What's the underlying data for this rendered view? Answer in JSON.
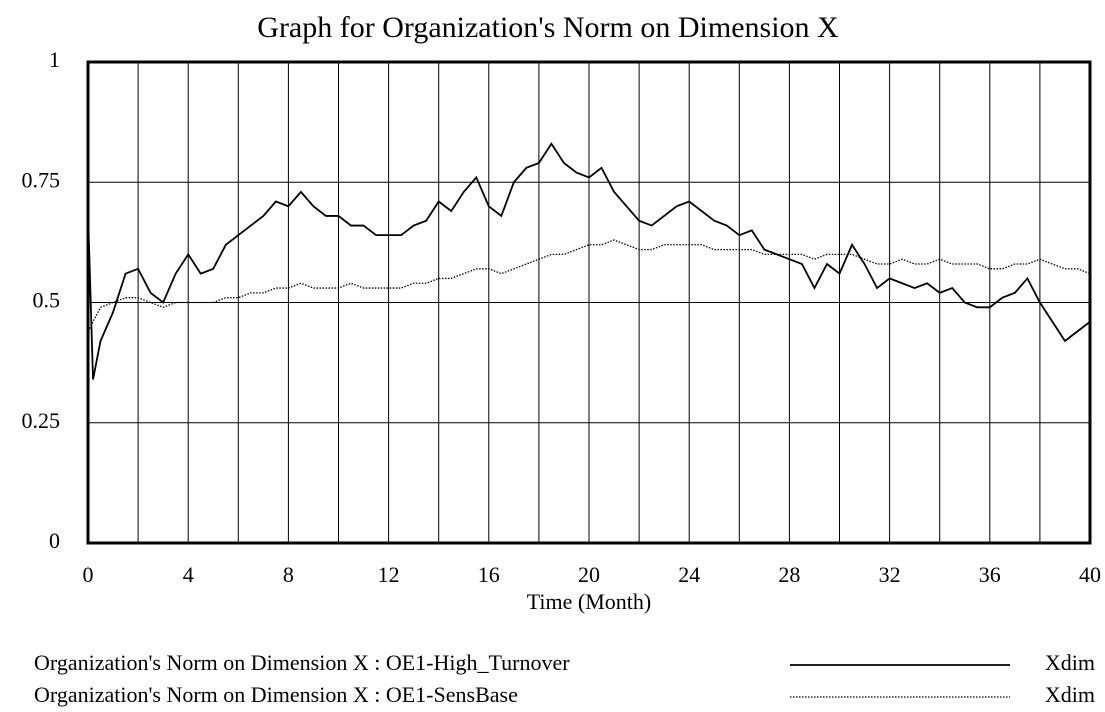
{
  "chart_data": {
    "type": "line",
    "title": "Graph for Organization's Norm on Dimension X",
    "x_label": "Time (Month)",
    "x": [
      0,
      0.2,
      0.5,
      1,
      1.5,
      2,
      2.5,
      3,
      3.5,
      4,
      4.5,
      5,
      5.5,
      6,
      6.5,
      7,
      7.5,
      8,
      8.5,
      9,
      9.5,
      10,
      10.5,
      11,
      11.5,
      12,
      12.5,
      13,
      13.5,
      14,
      14.5,
      15,
      15.5,
      16,
      16.5,
      17,
      17.5,
      18,
      18.5,
      19,
      19.5,
      20,
      20.5,
      21,
      21.5,
      22,
      22.5,
      23,
      23.5,
      24,
      24.5,
      25,
      25.5,
      26,
      26.5,
      27,
      27.5,
      28,
      28.5,
      29,
      29.5,
      30,
      30.5,
      31,
      31.5,
      32,
      32.5,
      33,
      33.5,
      34,
      34.5,
      35,
      35.5,
      36,
      36.5,
      37,
      37.5,
      38,
      38.5,
      39,
      39.5,
      40
    ],
    "series": [
      {
        "name": "Organization's Norm on Dimension X : OE1-High_Turnover",
        "unit": "Xdim",
        "color": "#000000",
        "dash": "solid",
        "values": [
          0.69,
          0.34,
          0.42,
          0.48,
          0.56,
          0.57,
          0.52,
          0.5,
          0.56,
          0.6,
          0.56,
          0.57,
          0.62,
          0.64,
          0.66,
          0.68,
          0.71,
          0.7,
          0.73,
          0.7,
          0.68,
          0.68,
          0.66,
          0.66,
          0.64,
          0.64,
          0.64,
          0.66,
          0.67,
          0.71,
          0.69,
          0.73,
          0.76,
          0.7,
          0.68,
          0.75,
          0.78,
          0.79,
          0.83,
          0.79,
          0.77,
          0.76,
          0.78,
          0.73,
          0.7,
          0.67,
          0.66,
          0.68,
          0.7,
          0.71,
          0.69,
          0.67,
          0.66,
          0.64,
          0.65,
          0.61,
          0.6,
          0.59,
          0.58,
          0.53,
          0.58,
          0.56,
          0.62,
          0.58,
          0.53,
          0.55,
          0.54,
          0.53,
          0.54,
          0.52,
          0.53,
          0.5,
          0.49,
          0.49,
          0.51,
          0.52,
          0.55,
          0.5,
          0.46,
          0.42,
          0.44,
          0.46
        ]
      },
      {
        "name": "Organization's Norm on Dimension X : OE1-SensBase",
        "unit": "Xdim",
        "color": "#000000",
        "dash": "dotted",
        "values": [
          0.44,
          0.46,
          0.49,
          0.5,
          0.51,
          0.51,
          0.5,
          0.49,
          0.5,
          0.5,
          0.5,
          0.5,
          0.51,
          0.51,
          0.52,
          0.52,
          0.53,
          0.53,
          0.54,
          0.53,
          0.53,
          0.53,
          0.54,
          0.53,
          0.53,
          0.53,
          0.53,
          0.54,
          0.54,
          0.55,
          0.55,
          0.56,
          0.57,
          0.57,
          0.56,
          0.57,
          0.58,
          0.59,
          0.6,
          0.6,
          0.61,
          0.62,
          0.62,
          0.63,
          0.62,
          0.61,
          0.61,
          0.62,
          0.62,
          0.62,
          0.62,
          0.61,
          0.61,
          0.61,
          0.61,
          0.6,
          0.6,
          0.6,
          0.6,
          0.59,
          0.6,
          0.6,
          0.6,
          0.59,
          0.58,
          0.58,
          0.59,
          0.58,
          0.58,
          0.59,
          0.58,
          0.58,
          0.58,
          0.57,
          0.57,
          0.58,
          0.58,
          0.59,
          0.58,
          0.57,
          0.57,
          0.56
        ]
      }
    ],
    "xlim": [
      0,
      40
    ],
    "xticks": [
      0,
      4,
      8,
      12,
      16,
      20,
      24,
      28,
      32,
      36,
      40
    ],
    "xminor": [
      2,
      6,
      10,
      14,
      18,
      22,
      26,
      30,
      34,
      38
    ],
    "ylim": [
      0,
      1
    ],
    "yticks": [
      0,
      0.25,
      0.5,
      0.75,
      1
    ],
    "grid": true
  }
}
